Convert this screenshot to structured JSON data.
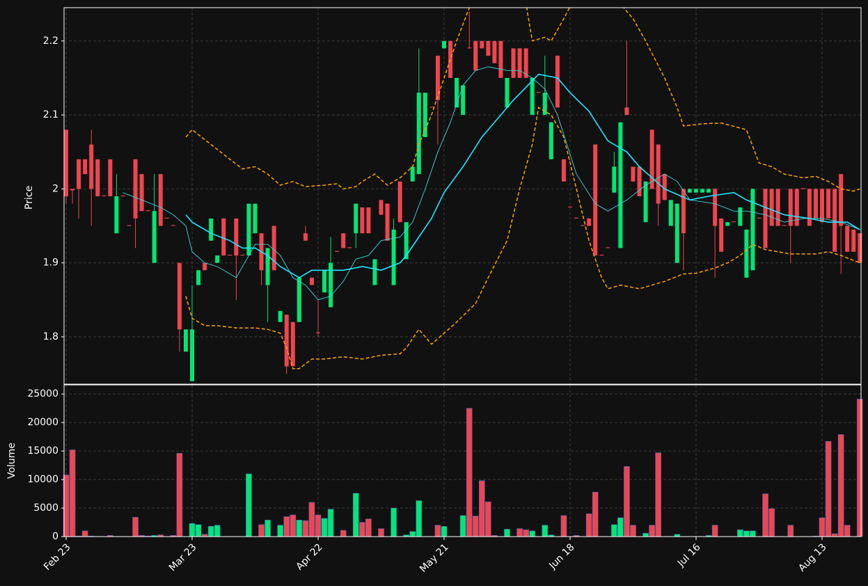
{
  "chart_data": [
    {
      "type": "candlestick",
      "ylabel": "Price",
      "grid": true,
      "up_color": "#00e676",
      "down_color": "#ef4550",
      "ylim": [
        1.736,
        2.245
      ],
      "yticks": [
        1.8,
        1.9,
        2.0,
        2.1,
        2.2
      ],
      "categories": [
        "Feb 23",
        null,
        null,
        null,
        null,
        null,
        null,
        null,
        null,
        null,
        null,
        null,
        null,
        null,
        null,
        null,
        null,
        null,
        null,
        null,
        "Mar 23",
        null,
        null,
        null,
        null,
        null,
        null,
        null,
        null,
        null,
        null,
        null,
        null,
        null,
        null,
        null,
        null,
        null,
        null,
        null,
        "Apr 22",
        null,
        null,
        null,
        null,
        null,
        null,
        null,
        null,
        null,
        null,
        null,
        null,
        null,
        null,
        null,
        null,
        null,
        null,
        null,
        "May 21",
        null,
        null,
        null,
        null,
        null,
        null,
        null,
        null,
        null,
        null,
        null,
        null,
        null,
        null,
        null,
        null,
        null,
        null,
        null,
        "Jun 18",
        null,
        null,
        null,
        null,
        null,
        null,
        null,
        null,
        null,
        null,
        null,
        null,
        null,
        null,
        null,
        null,
        null,
        null,
        null,
        "Jul 16",
        null,
        null,
        null,
        null,
        null,
        null,
        null,
        null,
        null,
        null,
        null,
        null,
        null,
        null,
        null,
        null,
        null,
        null,
        null,
        "Aug 13",
        null,
        null,
        null,
        null,
        null,
        null
      ],
      "open": [
        2.08,
        2.0,
        2.04,
        2.04,
        2.06,
        2.04,
        1.991,
        2.04,
        1.94,
        1.991,
        1.951,
        2.04,
        2.02,
        1.971,
        1.9,
        2.02,
        1.961,
        1.951,
        1.9,
        1.78,
        1.74,
        1.87,
        1.9,
        1.93,
        1.9,
        1.96,
        1.911,
        1.96,
        1.911,
        1.91,
        1.94,
        1.94,
        1.87,
        1.95,
        1.82,
        1.83,
        1.82,
        1.82,
        1.94,
        1.88,
        1.806,
        1.86,
        1.84,
        1.916,
        1.94,
        1.921,
        1.94,
        1.975,
        1.975,
        1.87,
        1.985,
        1.98,
        1.87,
        2.01,
        1.905,
        2.01,
        2.02,
        2.07,
        2.111,
        2.18,
        2.19,
        2.2,
        2.11,
        2.1,
        2.191,
        2.2,
        2.2,
        2.2,
        2.2,
        2.2,
        2.11,
        2.19,
        2.19,
        2.19,
        2.1,
        2.131,
        2.1,
        2.04,
        2.18,
        2.04,
        1.976,
        1.961,
        1.951,
        1.96,
        2.06,
        1.911,
        1.921,
        1.995,
        1.92,
        2.11,
        2.03,
        2.03,
        1.955,
        2.08,
        2.06,
        2.02,
        1.95,
        1.9,
        2.0,
        1.995,
        1.995,
        1.995,
        1.995,
        2.0,
        1.96,
        1.95,
        1.956,
        1.95,
        1.88,
        1.89,
        1.961,
        2.0,
        2.0,
        2.0,
        1.951,
        2.0,
        2.0,
        2.001,
        2.0,
        2.0,
        2.0,
        2.0,
        2.0,
        2.02,
        1.95,
        1.945,
        1.94
      ],
      "high": [
        2.08,
        2.0,
        2.04,
        2.04,
        2.08,
        2.04,
        1.991,
        2.04,
        2.02,
        1.991,
        1.951,
        2.04,
        2.02,
        1.971,
        2.02,
        2.02,
        1.961,
        1.951,
        1.9,
        1.81,
        1.87,
        1.89,
        1.9,
        1.96,
        1.91,
        1.96,
        1.911,
        1.96,
        1.911,
        1.98,
        1.98,
        1.94,
        1.92,
        1.95,
        1.835,
        1.83,
        1.82,
        1.88,
        1.95,
        1.88,
        1.85,
        1.89,
        1.935,
        1.916,
        1.94,
        1.921,
        1.98,
        1.975,
        1.975,
        1.905,
        1.985,
        1.98,
        1.96,
        2.01,
        1.955,
        2.03,
        2.19,
        2.13,
        2.111,
        2.18,
        2.2,
        2.2,
        2.15,
        2.14,
        2.24,
        2.2,
        2.2,
        2.2,
        2.2,
        2.2,
        2.15,
        2.19,
        2.19,
        2.19,
        2.15,
        2.131,
        2.18,
        2.09,
        2.18,
        2.04,
        1.976,
        1.961,
        1.951,
        1.96,
        2.06,
        1.911,
        1.921,
        2.05,
        2.09,
        2.2,
        2.03,
        2.03,
        2.01,
        2.08,
        2.06,
        2.02,
        1.985,
        1.98,
        2.0,
        2.0,
        2.0,
        2.0,
        2.0,
        2.0,
        1.96,
        1.955,
        1.956,
        1.975,
        1.945,
        2.0,
        1.961,
        2.0,
        2.0,
        2.0,
        1.951,
        2.0,
        2.0,
        2.001,
        2.0,
        2.0,
        2.0,
        2.0,
        2.0,
        2.02,
        1.95,
        1.945,
        1.94
      ],
      "low": [
        1.98,
        1.98,
        1.96,
        2.02,
        1.95,
        1.99,
        1.99,
        1.99,
        1.94,
        1.99,
        1.95,
        1.92,
        1.97,
        1.97,
        1.9,
        1.95,
        1.96,
        1.95,
        1.78,
        1.78,
        1.74,
        1.87,
        1.89,
        1.93,
        1.9,
        1.91,
        1.91,
        1.85,
        1.91,
        1.91,
        1.94,
        1.87,
        1.82,
        1.89,
        1.82,
        1.75,
        1.76,
        1.82,
        1.93,
        1.87,
        1.8,
        1.86,
        1.84,
        1.915,
        1.92,
        1.92,
        1.92,
        1.94,
        1.94,
        1.87,
        1.965,
        1.93,
        1.87,
        1.955,
        1.905,
        2.01,
        2.02,
        2.07,
        2.11,
        2.06,
        2.19,
        2.15,
        2.11,
        2.1,
        2.19,
        2.16,
        2.19,
        2.18,
        2.17,
        2.15,
        2.11,
        2.15,
        2.15,
        2.15,
        2.1,
        2.13,
        2.1,
        2.04,
        2.11,
        2.01,
        1.975,
        1.96,
        1.95,
        1.95,
        1.91,
        1.91,
        1.92,
        1.995,
        1.92,
        2.1,
        2.01,
        1.99,
        1.955,
        2.0,
        1.95,
        1.985,
        1.95,
        1.9,
        1.89,
        1.995,
        1.995,
        1.995,
        1.995,
        1.88,
        1.915,
        1.95,
        1.955,
        1.95,
        1.88,
        1.89,
        1.96,
        1.92,
        1.95,
        1.95,
        1.95,
        1.9,
        1.95,
        2.0,
        1.95,
        1.96,
        1.955,
        1.96,
        1.915,
        1.885,
        1.915,
        1.915,
        1.9
      ],
      "close": [
        1.99,
        1.998,
        2.0,
        2.02,
        2.0,
        1.99,
        1.99,
        1.99,
        1.99,
        1.99,
        1.95,
        1.96,
        1.97,
        1.97,
        1.97,
        1.95,
        1.96,
        1.95,
        1.81,
        1.81,
        1.81,
        1.89,
        1.89,
        1.96,
        1.91,
        1.91,
        1.91,
        1.91,
        1.91,
        1.98,
        1.98,
        1.89,
        1.92,
        1.89,
        1.835,
        1.76,
        1.76,
        1.88,
        1.93,
        1.87,
        1.805,
        1.89,
        1.9,
        1.915,
        1.92,
        1.92,
        1.98,
        1.94,
        1.94,
        1.905,
        1.965,
        1.93,
        1.945,
        1.955,
        1.955,
        2.03,
        2.13,
        2.13,
        2.11,
        2.12,
        2.2,
        2.15,
        2.15,
        2.14,
        2.19,
        2.16,
        2.19,
        2.18,
        2.17,
        2.15,
        2.15,
        2.15,
        2.15,
        2.15,
        2.15,
        2.13,
        2.13,
        2.09,
        2.11,
        2.01,
        1.975,
        1.96,
        1.95,
        1.95,
        1.91,
        1.91,
        1.92,
        2.03,
        2.09,
        2.1,
        2.01,
        1.99,
        2.01,
        2.0,
        1.98,
        1.985,
        1.985,
        1.98,
        1.94,
        2.0,
        2.0,
        2.0,
        2.0,
        1.95,
        1.915,
        1.955,
        1.955,
        1.975,
        1.945,
        2.0,
        1.96,
        1.92,
        1.95,
        1.95,
        1.95,
        1.95,
        1.95,
        2.0,
        1.95,
        1.96,
        1.955,
        1.96,
        1.915,
        1.95,
        1.915,
        1.915,
        1.9
      ],
      "lines": [
        {
          "color": "#ffa500",
          "width": 1.5,
          "dash": true,
          "x": [
            19,
            20,
            23,
            26,
            28,
            30,
            32,
            34,
            36,
            38,
            41,
            43,
            44,
            46,
            47,
            49,
            51,
            53,
            55,
            56,
            58,
            60,
            62,
            64,
            66,
            70,
            73,
            74,
            76,
            77,
            79,
            82,
            85,
            88,
            90,
            92,
            95,
            97,
            98,
            101,
            104,
            108,
            110,
            112,
            114,
            117,
            119,
            121,
            123,
            125,
            126
          ],
          "values": [
            2.07,
            2.08,
            2.06,
            2.04,
            2.027,
            2.03,
            2.02,
            2.005,
            2.01,
            2.003,
            2.005,
            2.007,
            2.0,
            2.003,
            2.01,
            2.02,
            2.005,
            2.015,
            2.03,
            2.06,
            2.1,
            2.15,
            2.2,
            2.245,
            2.27,
            2.28,
            2.25,
            2.2,
            2.205,
            2.2,
            2.23,
            2.28,
            2.28,
            2.25,
            2.23,
            2.2,
            2.15,
            2.11,
            2.085,
            2.088,
            2.089,
            2.08,
            2.035,
            2.03,
            2.02,
            2.015,
            2.017,
            2.01,
            2.0,
            1.997,
            2.0
          ]
        },
        {
          "color": "#ffa500",
          "width": 1.5,
          "dash": true,
          "x": [
            19,
            20,
            22,
            24,
            27,
            30,
            32,
            34,
            35,
            36,
            37,
            39,
            41,
            44,
            47,
            50,
            53,
            54,
            56,
            58,
            60,
            62,
            65,
            67,
            70,
            72,
            74,
            75,
            77,
            79,
            81,
            83,
            85,
            86,
            88,
            91,
            95,
            98,
            100,
            103,
            105,
            107,
            109,
            111,
            115,
            119,
            121,
            123,
            126
          ],
          "values": [
            1.855,
            1.825,
            1.815,
            1.815,
            1.812,
            1.812,
            1.81,
            1.805,
            1.785,
            1.757,
            1.757,
            1.77,
            1.77,
            1.773,
            1.77,
            1.775,
            1.777,
            1.785,
            1.81,
            1.79,
            1.805,
            1.82,
            1.845,
            1.88,
            1.93,
            2.0,
            2.06,
            2.11,
            2.1,
            2.07,
            2.0,
            1.93,
            1.88,
            1.865,
            1.87,
            1.865,
            1.875,
            1.885,
            1.886,
            1.893,
            1.9,
            1.91,
            1.925,
            1.918,
            1.912,
            1.912,
            1.915,
            1.91,
            1.9
          ]
        },
        {
          "color": "#40d8e0",
          "width": 0.9,
          "dash": false,
          "x": [
            9,
            12,
            15,
            17,
            19,
            20,
            22,
            24,
            27,
            28,
            30,
            32,
            34,
            36,
            38,
            40,
            42,
            44,
            46,
            48,
            50,
            53,
            55,
            57,
            59,
            61,
            63,
            65,
            67,
            70,
            72,
            74,
            76,
            78,
            81,
            84,
            86,
            89,
            92,
            95,
            97,
            99,
            103,
            106,
            108,
            111,
            114,
            117,
            120,
            123,
            126
          ],
          "values": [
            1.995,
            1.985,
            1.975,
            1.965,
            1.95,
            1.915,
            1.9,
            1.895,
            1.88,
            1.895,
            1.925,
            1.925,
            1.91,
            1.88,
            1.87,
            1.85,
            1.855,
            1.875,
            1.905,
            1.91,
            1.93,
            1.935,
            1.955,
            2.0,
            2.05,
            2.09,
            2.14,
            2.16,
            2.165,
            2.16,
            2.16,
            2.15,
            2.135,
            2.1,
            2.02,
            1.98,
            1.97,
            1.985,
            2.005,
            2.02,
            2.01,
            1.985,
            1.98,
            1.97,
            1.97,
            1.965,
            1.955,
            1.96,
            1.96,
            1.955,
            1.945
          ]
        },
        {
          "color": "#1ee8ff",
          "width": 1.6,
          "dash": false,
          "x": [
            19,
            20,
            23,
            26,
            28,
            30,
            32,
            34,
            37,
            39,
            42,
            44,
            47,
            50,
            53,
            54,
            56,
            58,
            60,
            63,
            66,
            71,
            75,
            78,
            80,
            83,
            86,
            89,
            91,
            95,
            99,
            102,
            106,
            108,
            111,
            114,
            118,
            121,
            124,
            126
          ],
          "values": [
            1.965,
            1.955,
            1.94,
            1.93,
            1.92,
            1.92,
            1.91,
            1.895,
            1.88,
            1.89,
            1.89,
            1.89,
            1.895,
            1.89,
            1.9,
            1.91,
            1.935,
            1.96,
            1.995,
            2.03,
            2.07,
            2.12,
            2.155,
            2.15,
            2.13,
            2.105,
            2.065,
            2.05,
            2.03,
            2.0,
            1.985,
            1.99,
            1.995,
            1.985,
            1.975,
            1.965,
            1.96,
            1.955,
            1.955,
            1.945
          ]
        }
      ]
    },
    {
      "type": "bar",
      "ylabel": "Volume",
      "grid": true,
      "ylim": [
        0,
        26600
      ],
      "yticks": [
        0,
        5000,
        10000,
        15000,
        20000,
        25000
      ],
      "values": [
        10800,
        15200,
        100,
        1000,
        100,
        0,
        0,
        200,
        0,
        0,
        0,
        3400,
        200,
        100,
        200,
        300,
        0,
        200,
        14600,
        0,
        2300,
        2100,
        400,
        1800,
        2000,
        0,
        0,
        0,
        0,
        11000,
        0,
        2100,
        2900,
        0,
        2000,
        3500,
        3800,
        2900,
        2800,
        6000,
        3800,
        3200,
        4800,
        0,
        1100,
        0,
        7600,
        2500,
        3100,
        0,
        1400,
        0,
        5000,
        0,
        300,
        900,
        6300,
        0,
        0,
        2000,
        1800,
        0,
        0,
        3700,
        22500,
        3600,
        9800,
        6100,
        200,
        0,
        1300,
        0,
        1400,
        1200,
        1000,
        0,
        2000,
        300,
        0,
        3700,
        0,
        200,
        0,
        4000,
        7800,
        0,
        0,
        2100,
        3300,
        12300,
        2000,
        0,
        600,
        2000,
        14700,
        0,
        0,
        400,
        0,
        0,
        0,
        0,
        200,
        2000,
        0,
        0,
        0,
        1200,
        1000,
        1000,
        0,
        7500,
        4900,
        0,
        0,
        2000,
        0,
        0,
        0,
        100,
        3300,
        16700,
        500,
        17900,
        2000,
        0,
        24100
      ]
    }
  ]
}
